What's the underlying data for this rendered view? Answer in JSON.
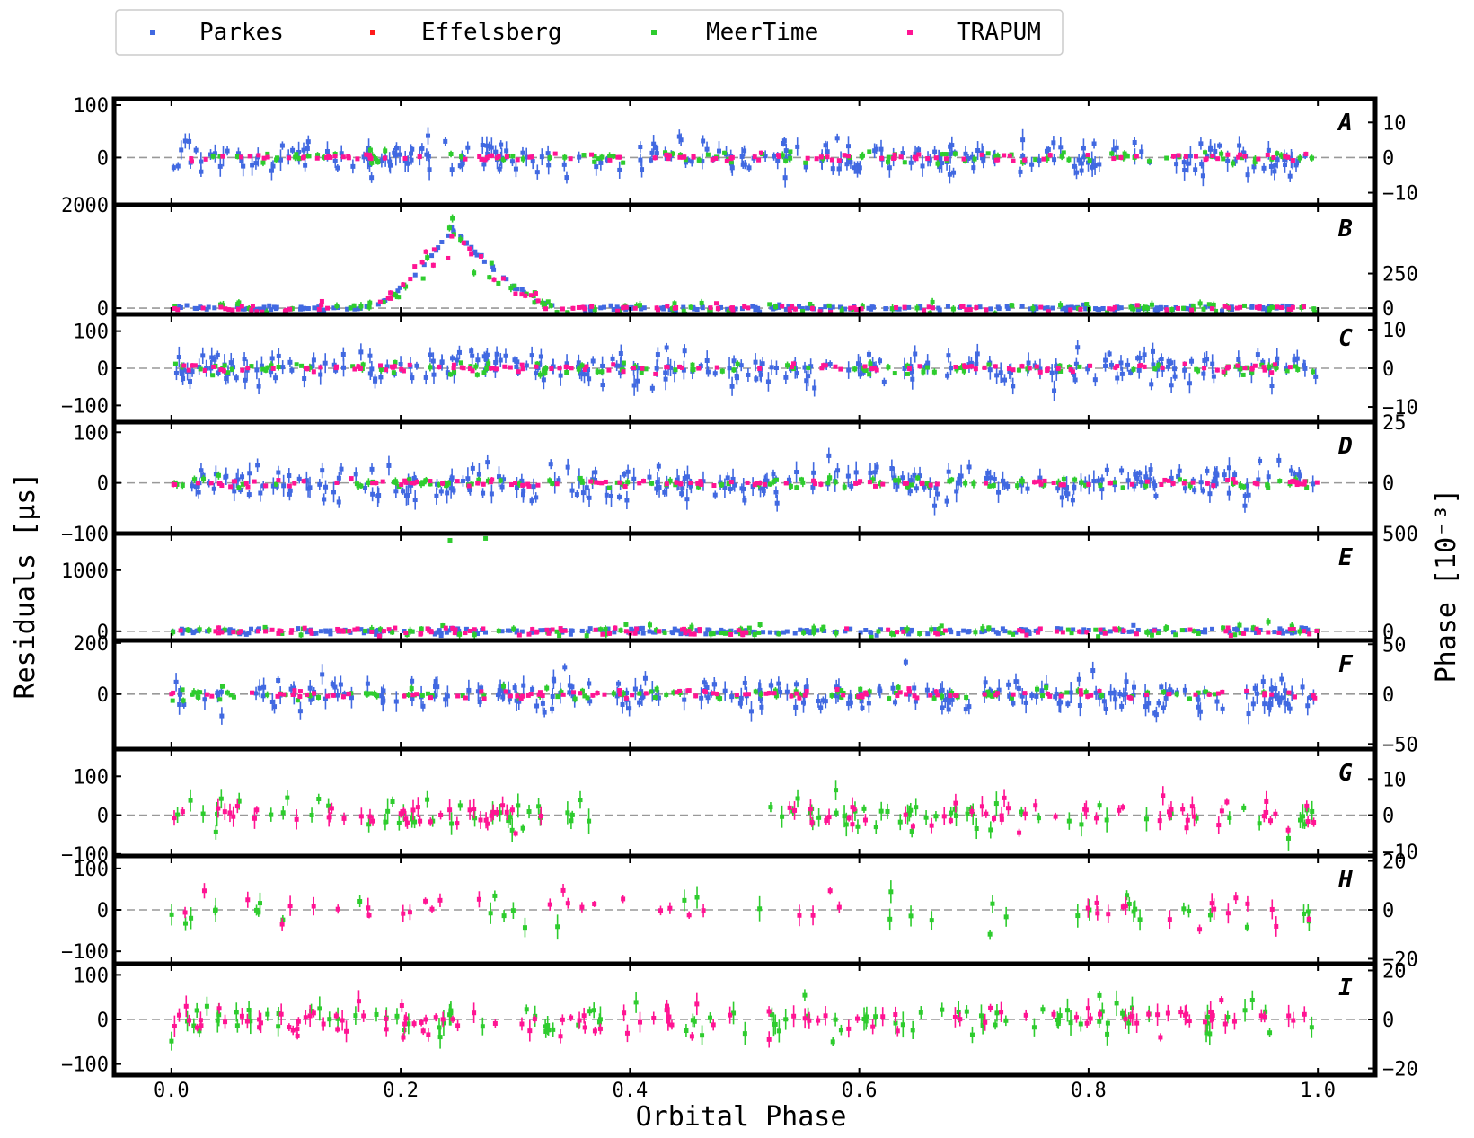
{
  "chart_data": {
    "type": "scatter",
    "xlabel": "Orbital Phase",
    "ylabel_left": "Residuals [μs]",
    "ylabel_right": "Phase [10⁻³]",
    "xlim": [
      -0.05,
      1.05
    ],
    "x_ticks": [
      "0.0",
      "0.2",
      "0.4",
      "0.6",
      "0.8",
      "1.0"
    ],
    "legend": {
      "placement": "top",
      "entries": [
        {
          "name": "Parkes",
          "color": "#4169e1"
        },
        {
          "name": "Effelsberg",
          "color": "#ff1a1a"
        },
        {
          "name": "MeerTime",
          "color": "#2ecc2e"
        },
        {
          "name": "TRAPUM",
          "color": "#ff1493"
        }
      ]
    },
    "panels": [
      {
        "label": "A",
        "ylim": [
          -90,
          112
        ],
        "left_ticks": [
          {
            "v": 100,
            "t": "100"
          },
          {
            "v": 0,
            "t": "0"
          }
        ],
        "right_ticks": [
          {
            "v": 67,
            "t": "10"
          },
          {
            "v": 0,
            "t": "0"
          },
          {
            "v": -67,
            "t": "−10"
          }
        ],
        "telescopes": [
          "Parkes",
          "MeerTime",
          "TRAPUM"
        ]
      },
      {
        "label": "B",
        "ylim": [
          -120,
          2000
        ],
        "left_ticks": [
          {
            "v": 2000,
            "t": "2000"
          },
          {
            "v": 0,
            "t": "0"
          }
        ],
        "right_ticks": [
          {
            "v": 670,
            "t": "250"
          },
          {
            "v": 0,
            "t": "0"
          }
        ],
        "telescopes": [
          "Parkes",
          "MeerTime",
          "TRAPUM"
        ],
        "excursion": {
          "start": 0.17,
          "peak": 0.245,
          "end": 0.34,
          "peak_value": 1550
        }
      },
      {
        "label": "C",
        "ylim": [
          -145,
          145
        ],
        "left_ticks": [
          {
            "v": 100,
            "t": "100"
          },
          {
            "v": 0,
            "t": "0"
          },
          {
            "v": -100,
            "t": "−100"
          }
        ],
        "right_ticks": [
          {
            "v": 104,
            "t": "10"
          },
          {
            "v": 0,
            "t": "0"
          },
          {
            "v": -104,
            "t": "−10"
          }
        ],
        "telescopes": [
          "Parkes",
          "MeerTime",
          "TRAPUM"
        ]
      },
      {
        "label": "D",
        "ylim": [
          -100,
          120
        ],
        "left_ticks": [
          {
            "v": 100,
            "t": "100"
          },
          {
            "v": 0,
            "t": "0"
          },
          {
            "v": -100,
            "t": "−100"
          }
        ],
        "right_ticks": [
          {
            "v": 120,
            "t": "25"
          },
          {
            "v": 0,
            "t": "0"
          }
        ],
        "telescopes": [
          "Parkes",
          "MeerTime",
          "TRAPUM"
        ]
      },
      {
        "label": "E",
        "ylim": [
          -150,
          1600
        ],
        "left_ticks": [
          {
            "v": 1000,
            "t": "1000"
          },
          {
            "v": 0,
            "t": "0"
          }
        ],
        "right_ticks": [
          {
            "v": 1600,
            "t": "500"
          },
          {
            "v": 0,
            "t": "0"
          }
        ],
        "telescopes": [
          "Parkes",
          "MeerTime",
          "TRAPUM"
        ],
        "outliers": [
          {
            "x": 0.243,
            "y": 1490
          },
          {
            "x": 0.274,
            "y": 1520
          }
        ]
      },
      {
        "label": "F",
        "ylim": [
          -215,
          210
        ],
        "left_ticks": [
          {
            "v": 200,
            "t": "200"
          },
          {
            "v": 0,
            "t": "0"
          }
        ],
        "right_ticks": [
          {
            "v": 195,
            "t": "50"
          },
          {
            "v": 0,
            "t": "0"
          },
          {
            "v": -195,
            "t": "−50"
          }
        ],
        "telescopes": [
          "Parkes",
          "MeerTime",
          "TRAPUM"
        ]
      },
      {
        "label": "G",
        "ylim": [
          -105,
          170
        ],
        "left_ticks": [
          {
            "v": 100,
            "t": "100"
          },
          {
            "v": 0,
            "t": "0"
          },
          {
            "v": -100,
            "t": "−100"
          }
        ],
        "right_ticks": [
          {
            "v": 93,
            "t": "10"
          },
          {
            "v": 0,
            "t": "0"
          },
          {
            "v": -93,
            "t": "−10"
          }
        ],
        "telescopes": [
          "MeerTime",
          "TRAPUM"
        ],
        "gaps": [
          [
            0.38,
            0.52
          ]
        ]
      },
      {
        "label": "H",
        "ylim": [
          -130,
          130
        ],
        "left_ticks": [
          {
            "v": 100,
            "t": "100"
          },
          {
            "v": 0,
            "t": "0"
          },
          {
            "v": -100,
            "t": "−100"
          }
        ],
        "right_ticks": [
          {
            "v": 118,
            "t": "20"
          },
          {
            "v": 0,
            "t": "0"
          },
          {
            "v": -118,
            "t": "−20"
          }
        ],
        "telescopes": [
          "MeerTime",
          "TRAPUM"
        ],
        "sparse": true
      },
      {
        "label": "I",
        "ylim": [
          -125,
          125
        ],
        "left_ticks": [
          {
            "v": 100,
            "t": "100"
          },
          {
            "v": 0,
            "t": "0"
          },
          {
            "v": -100,
            "t": "−100"
          }
        ],
        "right_ticks": [
          {
            "v": 110,
            "t": "20"
          },
          {
            "v": 0,
            "t": "0"
          },
          {
            "v": -110,
            "t": "−20"
          }
        ],
        "telescopes": [
          "MeerTime",
          "TRAPUM"
        ]
      }
    ]
  }
}
